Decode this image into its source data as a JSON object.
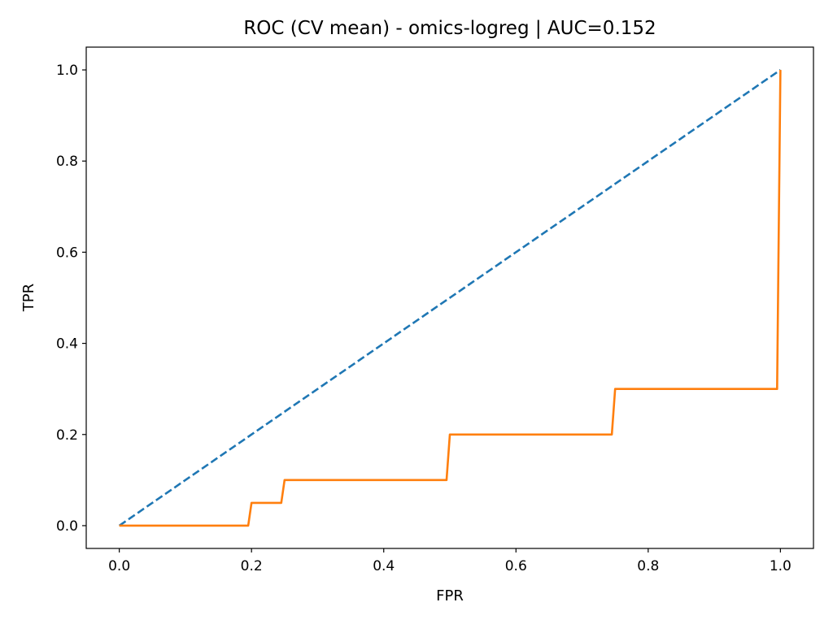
{
  "chart_data": {
    "type": "line",
    "title": "ROC (CV mean) - omics-logreg | AUC=0.152",
    "xlabel": "FPR",
    "ylabel": "TPR",
    "xlim": [
      -0.05,
      1.05
    ],
    "ylim": [
      -0.05,
      1.05
    ],
    "xticks": [
      0.0,
      0.2,
      0.4,
      0.6,
      0.8,
      1.0
    ],
    "xtick_labels": [
      "0.0",
      "0.2",
      "0.4",
      "0.6",
      "0.8",
      "1.0"
    ],
    "yticks": [
      0.0,
      0.2,
      0.4,
      0.6,
      0.8,
      1.0
    ],
    "ytick_labels": [
      "0.0",
      "0.2",
      "0.4",
      "0.6",
      "0.8",
      "1.0"
    ],
    "grid": false,
    "series": [
      {
        "color": "#1f77b4",
        "style": "dashed",
        "x": [
          0.0,
          1.0
        ],
        "y": [
          0.0,
          1.0
        ]
      },
      {
        "color": "#ff7f0e",
        "style": "solid",
        "x": [
          0.0,
          0.195,
          0.2,
          0.245,
          0.25,
          0.495,
          0.5,
          0.745,
          0.75,
          0.995,
          1.0
        ],
        "y": [
          0.0,
          0.0,
          0.05,
          0.05,
          0.1,
          0.1,
          0.2,
          0.2,
          0.3,
          0.3,
          1.0
        ]
      }
    ]
  }
}
